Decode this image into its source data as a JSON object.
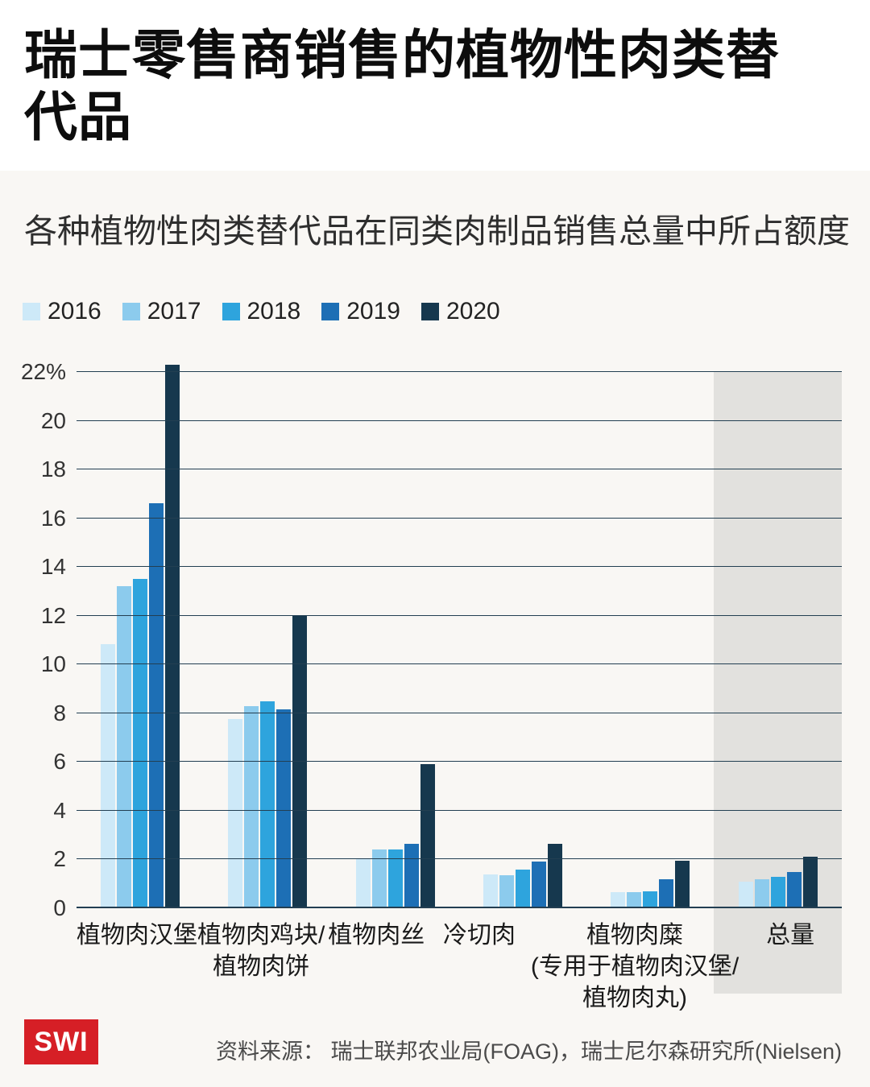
{
  "header": {
    "title": "瑞士零售商销售的植物性肉类替代品",
    "subtitle": "各种植物性肉类替代品在同类肉制品销售总量中所占额度"
  },
  "chart_data": {
    "type": "bar",
    "title": "瑞士零售商销售的植物性肉类替代品",
    "subtitle": "各种植物性肉类替代品在同类肉制品销售总量中所占额度",
    "categories": [
      "植物肉汉堡",
      "植物肉鸡块/\n植物肉饼",
      "植物肉丝",
      "冷切肉",
      "植物肉糜\n(专用于植物肉汉堡/\n植物肉丸)",
      "总量"
    ],
    "series": [
      {
        "name": "2016",
        "color": "#cde9f8",
        "values": [
          10.85,
          7.75,
          2.0,
          1.4,
          0.65,
          1.1
        ]
      },
      {
        "name": "2017",
        "color": "#8ccbed",
        "values": [
          13.2,
          8.3,
          2.4,
          1.35,
          0.65,
          1.2
        ]
      },
      {
        "name": "2018",
        "color": "#2ea4dd",
        "values": [
          13.5,
          8.5,
          2.4,
          1.6,
          0.7,
          1.3
        ]
      },
      {
        "name": "2019",
        "color": "#1d6fb5",
        "values": [
          16.6,
          8.15,
          2.65,
          1.9,
          1.2,
          1.5
        ]
      },
      {
        "name": "2020",
        "color": "#16384e",
        "values": [
          22.3,
          12.0,
          5.9,
          2.65,
          1.95,
          2.1
        ]
      }
    ],
    "ylim": [
      0,
      22
    ],
    "ytick_step": 2,
    "ytick_top_label": "22%",
    "xlabel": "",
    "ylabel": "",
    "grid": true,
    "legend_position": "top",
    "highlight_category": "总量"
  },
  "footer": {
    "logo": "SWI",
    "source": "资料来源： 瑞士联邦农业局(FOAG)，瑞士尼尔森研究所(Nielsen)"
  },
  "colors": {
    "accent_red": "#d61f26",
    "grid": "#233f52",
    "highlight_band": "#e2e1de",
    "body_background": "#f9f7f4"
  }
}
